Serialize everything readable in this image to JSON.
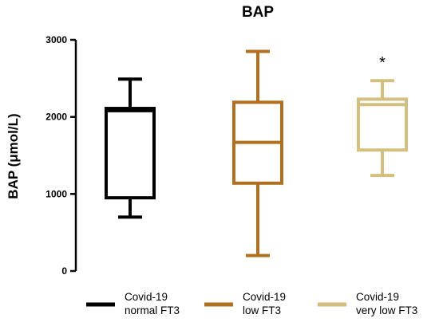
{
  "chart_data": {
    "type": "boxplot",
    "title": "BAP",
    "xlabel": "",
    "ylabel": "BAP (μmol/L)",
    "ylim": [
      0,
      3000
    ],
    "yticks": [
      0,
      1000,
      2000,
      3000
    ],
    "grid": false,
    "legend_position": "bottom",
    "series": [
      {
        "name_line1": "Covid-19",
        "name_line2": "normal FT3",
        "color": "#000000",
        "min": 700,
        "q1": 950,
        "median": 2080,
        "q3": 2110,
        "max": 2490
      },
      {
        "name_line1": "Covid-19",
        "name_line2": "low FT3",
        "color": "#b07020",
        "min": 200,
        "q1": 1140,
        "median": 1670,
        "q3": 2190,
        "max": 2850
      },
      {
        "name_line1": "Covid-19",
        "name_line2": "very low FT3",
        "color": "#d3bf80",
        "min": 1240,
        "q1": 1570,
        "median": 2160,
        "q3": 2230,
        "max": 2470,
        "annotation": "*"
      }
    ]
  }
}
